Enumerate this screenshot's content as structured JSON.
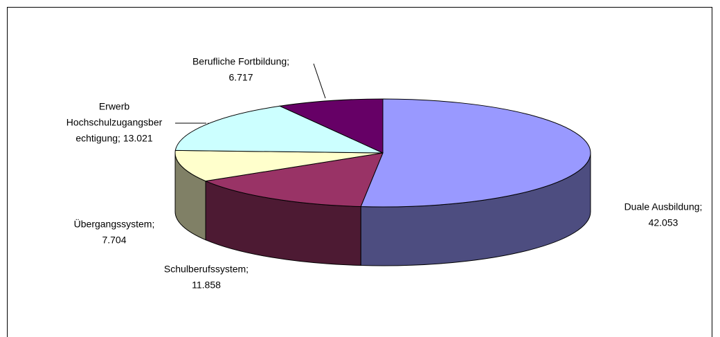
{
  "chart_data": {
    "type": "pie3d",
    "values": [
      42.053,
      11.858,
      7.704,
      13.021,
      6.717
    ],
    "value_labels": [
      [
        "Duale Ausbildung;",
        "42.053"
      ],
      [
        "Schulberufssystem;",
        "11.858"
      ],
      [
        "Übergangssystem;",
        "7.704"
      ],
      [
        "Erwerb",
        "Hochschulzugangsber",
        "echtigung; 13.021"
      ],
      [
        "Berufliche Fortbildung;",
        "6.717"
      ]
    ],
    "colors": [
      "#9999ff",
      "#993366",
      "#ffffcc",
      "#ccffff",
      "#660066"
    ],
    "side_colors": [
      "#4d4d80",
      "#4d1a33",
      "#808066",
      "#668080",
      "#330033"
    ]
  }
}
